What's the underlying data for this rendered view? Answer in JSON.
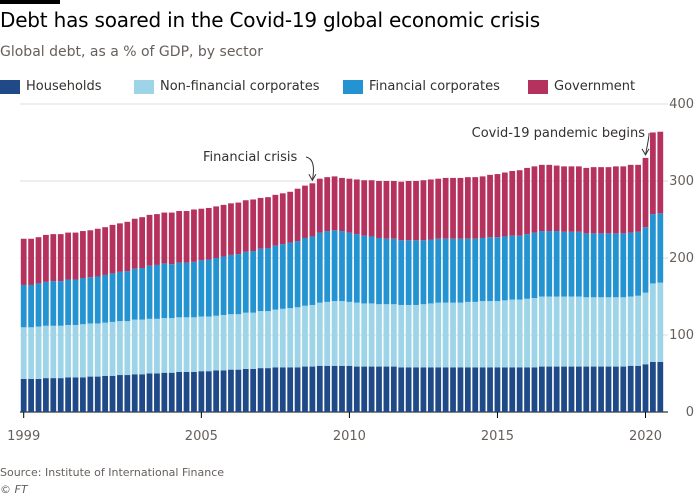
{
  "header": {
    "title": "Debt has soared in the Covid-19 global economic crisis",
    "subtitle": "Global debt, as a % of GDP, by sector"
  },
  "footer": {
    "source": "Source: Institute of International Finance",
    "credit": "© FT"
  },
  "chart_data": {
    "type": "bar",
    "stacked": true,
    "title": "Debt has soared in the Covid-19 global economic crisis",
    "subtitle": "Global debt, as a % of GDP, by sector",
    "ylim": [
      0,
      400
    ],
    "yticks": [
      0,
      100,
      200,
      300,
      400
    ],
    "y_axis_position": "right",
    "xticks": [
      "1999",
      "2005",
      "2010",
      "2015",
      "2020"
    ],
    "grid": true,
    "legend_position": "top",
    "periods": [
      "1999 Q1",
      "1999 Q2",
      "1999 Q3",
      "1999 Q4",
      "2000 Q1",
      "2000 Q2",
      "2000 Q3",
      "2000 Q4",
      "2001 Q1",
      "2001 Q2",
      "2001 Q3",
      "2001 Q4",
      "2002 Q1",
      "2002 Q2",
      "2002 Q3",
      "2002 Q4",
      "2003 Q1",
      "2003 Q2",
      "2003 Q3",
      "2003 Q4",
      "2004 Q1",
      "2004 Q2",
      "2004 Q3",
      "2004 Q4",
      "2005 Q1",
      "2005 Q2",
      "2005 Q3",
      "2005 Q4",
      "2006 Q1",
      "2006 Q2",
      "2006 Q3",
      "2006 Q4",
      "2007 Q1",
      "2007 Q2",
      "2007 Q3",
      "2007 Q4",
      "2008 Q1",
      "2008 Q2",
      "2008 Q3",
      "2008 Q4",
      "2009 Q1",
      "2009 Q2",
      "2009 Q3",
      "2009 Q4",
      "2010 Q1",
      "2010 Q2",
      "2010 Q3",
      "2010 Q4",
      "2011 Q1",
      "2011 Q2",
      "2011 Q3",
      "2011 Q4",
      "2012 Q1",
      "2012 Q2",
      "2012 Q3",
      "2012 Q4",
      "2013 Q1",
      "2013 Q2",
      "2013 Q3",
      "2013 Q4",
      "2014 Q1",
      "2014 Q2",
      "2014 Q3",
      "2014 Q4",
      "2015 Q1",
      "2015 Q2",
      "2015 Q3",
      "2015 Q4",
      "2016 Q1",
      "2016 Q2",
      "2016 Q3",
      "2016 Q4",
      "2017 Q1",
      "2017 Q2",
      "2017 Q3",
      "2017 Q4",
      "2018 Q1",
      "2018 Q2",
      "2018 Q3",
      "2018 Q4",
      "2019 Q1",
      "2019 Q2",
      "2019 Q3",
      "2019 Q4",
      "2020 Q1",
      "2020 Q2",
      "2020 Q3"
    ],
    "series": [
      {
        "name": "Households",
        "color": "#204a87",
        "values": [
          43,
          43,
          43,
          44,
          44,
          44,
          45,
          45,
          45,
          46,
          46,
          47,
          47,
          48,
          48,
          49,
          49,
          50,
          50,
          51,
          51,
          52,
          52,
          52,
          53,
          53,
          54,
          54,
          55,
          55,
          56,
          56,
          57,
          57,
          58,
          58,
          58,
          58,
          59,
          59,
          60,
          60,
          60,
          60,
          60,
          59,
          59,
          59,
          59,
          59,
          59,
          58,
          58,
          58,
          58,
          58,
          58,
          58,
          58,
          58,
          58,
          58,
          58,
          58,
          58,
          58,
          58,
          58,
          58,
          58,
          59,
          59,
          59,
          59,
          59,
          59,
          59,
          59,
          59,
          59,
          59,
          59,
          60,
          60,
          62,
          65,
          65
        ]
      },
      {
        "name": "Non-financial corporates",
        "color": "#9dd4e8",
        "values": [
          67,
          67,
          68,
          68,
          68,
          68,
          68,
          68,
          69,
          69,
          69,
          69,
          70,
          70,
          70,
          71,
          71,
          71,
          71,
          71,
          71,
          71,
          71,
          71,
          71,
          71,
          71,
          72,
          72,
          72,
          73,
          73,
          74,
          74,
          75,
          76,
          77,
          78,
          79,
          80,
          82,
          83,
          84,
          84,
          83,
          83,
          82,
          82,
          81,
          81,
          81,
          81,
          81,
          81,
          82,
          83,
          84,
          84,
          84,
          84,
          85,
          85,
          86,
          86,
          86,
          87,
          88,
          88,
          89,
          90,
          91,
          91,
          91,
          91,
          91,
          91,
          90,
          90,
          90,
          90,
          90,
          90,
          90,
          91,
          93,
          102,
          103
        ]
      },
      {
        "name": "Financial corporates",
        "color": "#2493d1",
        "values": [
          55,
          55,
          56,
          57,
          58,
          58,
          59,
          59,
          60,
          60,
          61,
          62,
          63,
          64,
          65,
          66,
          67,
          69,
          70,
          71,
          70,
          71,
          71,
          72,
          73,
          74,
          75,
          76,
          77,
          78,
          79,
          80,
          81,
          82,
          83,
          84,
          85,
          86,
          88,
          89,
          91,
          92,
          92,
          91,
          90,
          89,
          88,
          87,
          86,
          85,
          85,
          84,
          84,
          84,
          83,
          83,
          83,
          83,
          83,
          83,
          82,
          82,
          82,
          83,
          83,
          83,
          83,
          83,
          84,
          85,
          85,
          85,
          85,
          84,
          84,
          84,
          83,
          83,
          83,
          83,
          83,
          83,
          83,
          83,
          85,
          90,
          90
        ]
      },
      {
        "name": "Government",
        "color": "#b6325e",
        "values": [
          60,
          60,
          60,
          61,
          61,
          61,
          61,
          61,
          61,
          61,
          62,
          62,
          63,
          63,
          64,
          65,
          66,
          66,
          66,
          66,
          67,
          67,
          67,
          68,
          67,
          67,
          67,
          67,
          67,
          67,
          67,
          67,
          66,
          66,
          66,
          66,
          66,
          68,
          68,
          69,
          70,
          70,
          70,
          69,
          70,
          71,
          72,
          73,
          74,
          75,
          75,
          76,
          77,
          77,
          78,
          78,
          78,
          79,
          79,
          79,
          80,
          80,
          80,
          81,
          82,
          83,
          84,
          85,
          86,
          86,
          86,
          86,
          85,
          85,
          85,
          85,
          85,
          86,
          86,
          86,
          87,
          87,
          88,
          87,
          90,
          106,
          106
        ]
      }
    ],
    "annotations": [
      {
        "text": "Financial crisis",
        "period": "2008 Q4"
      },
      {
        "text": "Covid-19 pandemic begins",
        "period": "2020 Q1"
      }
    ]
  }
}
